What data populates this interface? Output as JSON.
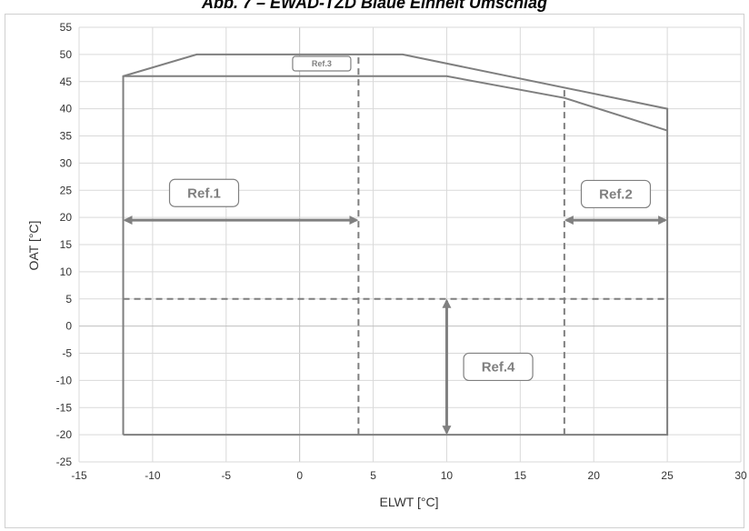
{
  "title": "Abb. 7 – EWAD-TZD Blaue Einheit Umschlag",
  "chart_data": {
    "type": "line",
    "xlabel": "ELWT [°C]",
    "ylabel": "OAT [°C]",
    "xlim": [
      -15,
      30
    ],
    "ylim": [
      -25,
      55
    ],
    "x_ticks": [
      -15,
      -10,
      -5,
      0,
      5,
      10,
      15,
      20,
      25,
      30
    ],
    "y_ticks": [
      -25,
      -20,
      -15,
      -10,
      -5,
      0,
      5,
      10,
      15,
      20,
      25,
      30,
      35,
      40,
      45,
      50,
      55
    ],
    "grid": true,
    "colors": {
      "envelope": "#7f7f7f",
      "arrow": "#808080",
      "grid": "#d9d9d9",
      "zero_line": "#bfbfbf"
    },
    "series": [
      {
        "style": "solid",
        "points": [
          [
            -12,
            -20
          ],
          [
            -12,
            46
          ],
          [
            -7,
            50
          ],
          [
            7,
            50
          ],
          [
            25,
            40
          ],
          [
            25,
            -20
          ],
          [
            -12,
            -20
          ]
        ]
      },
      {
        "style": "solid",
        "points": [
          [
            -12,
            46
          ],
          [
            10,
            46
          ],
          [
            18,
            42
          ],
          [
            25,
            36
          ]
        ]
      },
      {
        "style": "dashed",
        "points": [
          [
            4,
            -20
          ],
          [
            4,
            50
          ]
        ]
      },
      {
        "style": "dashed",
        "points": [
          [
            18,
            -20
          ],
          [
            18,
            44
          ]
        ]
      },
      {
        "style": "dashed",
        "points": [
          [
            -12,
            5
          ],
          [
            25,
            5
          ]
        ]
      }
    ],
    "annotations": [
      {
        "label": "Ref.1",
        "x": -6.5,
        "y": 24.5,
        "size": "large"
      },
      {
        "label": "Ref.2",
        "x": 21.5,
        "y": 24.3,
        "size": "large"
      },
      {
        "label": "Ref.3",
        "x": 1.5,
        "y": 48.3,
        "size": "small"
      },
      {
        "label": "Ref.4",
        "x": 13.5,
        "y": -7.5,
        "size": "large"
      }
    ],
    "arrows": [
      {
        "from": [
          -12,
          19.5
        ],
        "to": [
          4,
          19.5
        ]
      },
      {
        "from": [
          18,
          19.5
        ],
        "to": [
          25,
          19.5
        ]
      },
      {
        "from": [
          10,
          -20
        ],
        "to": [
          10,
          5
        ]
      }
    ]
  }
}
